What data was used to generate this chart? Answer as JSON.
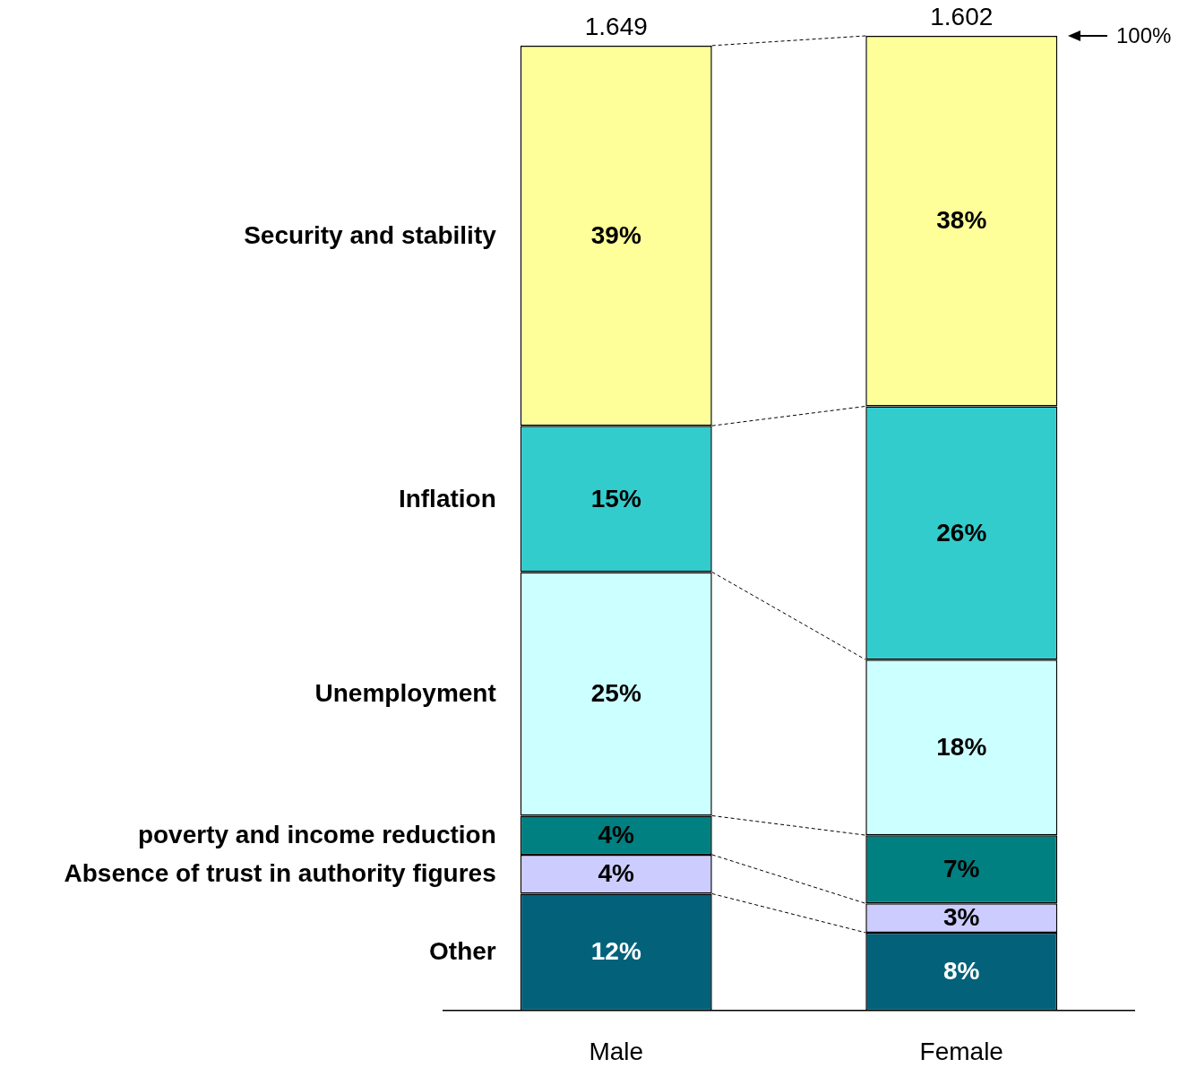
{
  "chart_data": {
    "type": "bar",
    "stacked": true,
    "categories": [
      "Male",
      "Female"
    ],
    "series": [
      {
        "name": "Other",
        "color": "#03617a",
        "values": [
          12,
          8
        ],
        "value_labels": [
          "12%",
          "8%"
        ]
      },
      {
        "name": "Absence of trust in authority figures",
        "color": "#ccccff",
        "values": [
          4,
          3
        ],
        "value_labels": [
          "4%",
          "3%"
        ]
      },
      {
        "name": "poverty and income reduction",
        "color": "#008080",
        "values": [
          4,
          7
        ],
        "value_labels": [
          "4%",
          "7%"
        ]
      },
      {
        "name": "Unemployment",
        "color": "#ccffff",
        "values": [
          25,
          18
        ],
        "value_labels": [
          "25%",
          "18%"
        ]
      },
      {
        "name": "Inflation",
        "color": "#33cccc",
        "values": [
          15,
          26
        ],
        "value_labels": [
          "15%",
          "26%"
        ]
      },
      {
        "name": "Security and stability",
        "color": "#ffff99",
        "values": [
          39,
          38
        ],
        "value_labels": [
          "39%",
          "38%"
        ]
      }
    ],
    "ylim": [
      0,
      100
    ],
    "tick_labels": "x",
    "legend": false,
    "annotations": [
      {
        "text": "1.649",
        "x": "Male",
        "y": 99
      },
      {
        "text": "1.602",
        "x": "Female",
        "y": 100
      },
      "100%"
    ]
  }
}
